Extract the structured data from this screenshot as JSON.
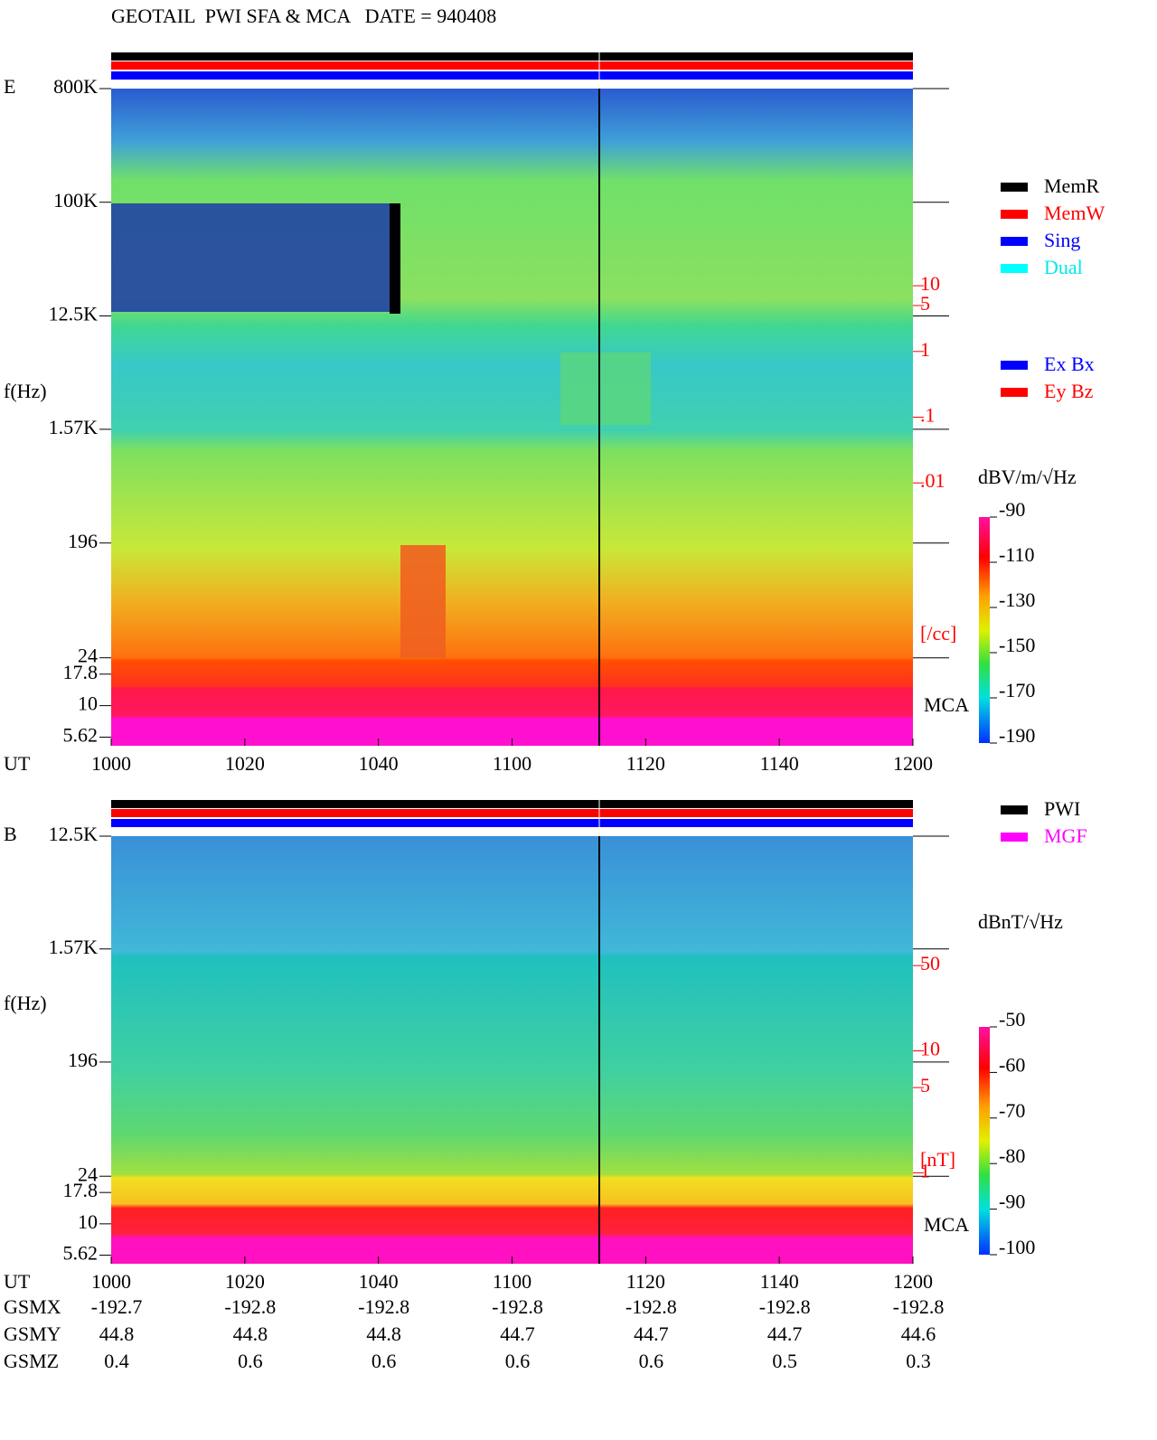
{
  "header": {
    "title": "GEOTAIL  PWI SFA & MCA   DATE = 940408"
  },
  "chart_data": [
    {
      "type": "spectrogram",
      "panel": "E",
      "y_label": "f(Hz)",
      "x_label": "UT",
      "ylog": true,
      "ylim": [
        4.8,
        800000
      ],
      "yticks": [
        {
          "value": 800000,
          "label": "800K"
        },
        {
          "value": 100000,
          "label": "100K"
        },
        {
          "value": 12500,
          "label": "12.5K"
        },
        {
          "value": 1570,
          "label": "1.57K"
        },
        196,
        24,
        17.8,
        10,
        5.62
      ],
      "xticks": [
        "1000",
        "1020",
        "1040",
        "1100",
        "1120",
        "1140",
        "1200"
      ],
      "y2_label": "[/cc]",
      "y2log": true,
      "y2lim": [
        1e-06,
        10000
      ],
      "y2ticks": [
        10,
        5,
        1,
        {
          "value": 0.1,
          "label": ".1"
        },
        {
          "value": 0.01,
          "label": ".01"
        }
      ],
      "mca_label": "MCA",
      "colorbar": {
        "label": "dBV/m/√Hz",
        "lim": [
          -90,
          -190
        ],
        "ticks": [
          -90,
          -110,
          -130,
          -150,
          -170,
          -190
        ]
      },
      "legend": [
        {
          "name": "MemR",
          "color": "#000000"
        },
        {
          "name": "MemW",
          "color": "#ff0000"
        },
        {
          "name": "Sing",
          "color": "#0000ff"
        },
        {
          "name": "Dual",
          "color": "#00ffff"
        }
      ],
      "legend2": [
        {
          "name": "Ex Bx",
          "color": "#0000ff"
        },
        {
          "name": "Ey Bz",
          "color": "#ff0000"
        }
      ]
    },
    {
      "type": "spectrogram",
      "panel": "B",
      "y_label": "f(Hz)",
      "x_label": "UT",
      "ylog": true,
      "ylim": [
        4.8,
        12500
      ],
      "yticks": [
        {
          "value": 12500,
          "label": "12.5K"
        },
        {
          "value": 1570,
          "label": "1.57K"
        },
        196,
        24,
        17.8,
        10,
        5.62
      ],
      "xticks": [
        "1000",
        "1020",
        "1040",
        "1100",
        "1120",
        "1140",
        "1200"
      ],
      "y2_label": "[nT]",
      "y2log": true,
      "y2lim": [
        0.18,
        575
      ],
      "y2ticks": [
        50,
        10,
        5,
        1
      ],
      "mca_label": "MCA",
      "colorbar": {
        "label": "dBnT/√Hz",
        "lim": [
          -50,
          -100
        ],
        "ticks": [
          -50,
          -60,
          -70,
          -80,
          -90,
          -100
        ]
      },
      "legend": [
        {
          "name": "PWI",
          "color": "#000000"
        },
        {
          "name": "MGF",
          "color": "#ff00ff"
        }
      ]
    }
  ],
  "orbit": {
    "rows": [
      {
        "name": "GSMX",
        "values": [
          -192.7,
          -192.8,
          -192.8,
          -192.8,
          -192.8,
          -192.8,
          -192.8
        ]
      },
      {
        "name": "GSMY",
        "values": [
          44.8,
          44.8,
          44.8,
          44.7,
          44.7,
          44.7,
          44.6
        ]
      },
      {
        "name": "GSMZ",
        "values": [
          0.4,
          0.6,
          0.6,
          0.6,
          0.6,
          0.5,
          0.3
        ]
      }
    ]
  }
}
